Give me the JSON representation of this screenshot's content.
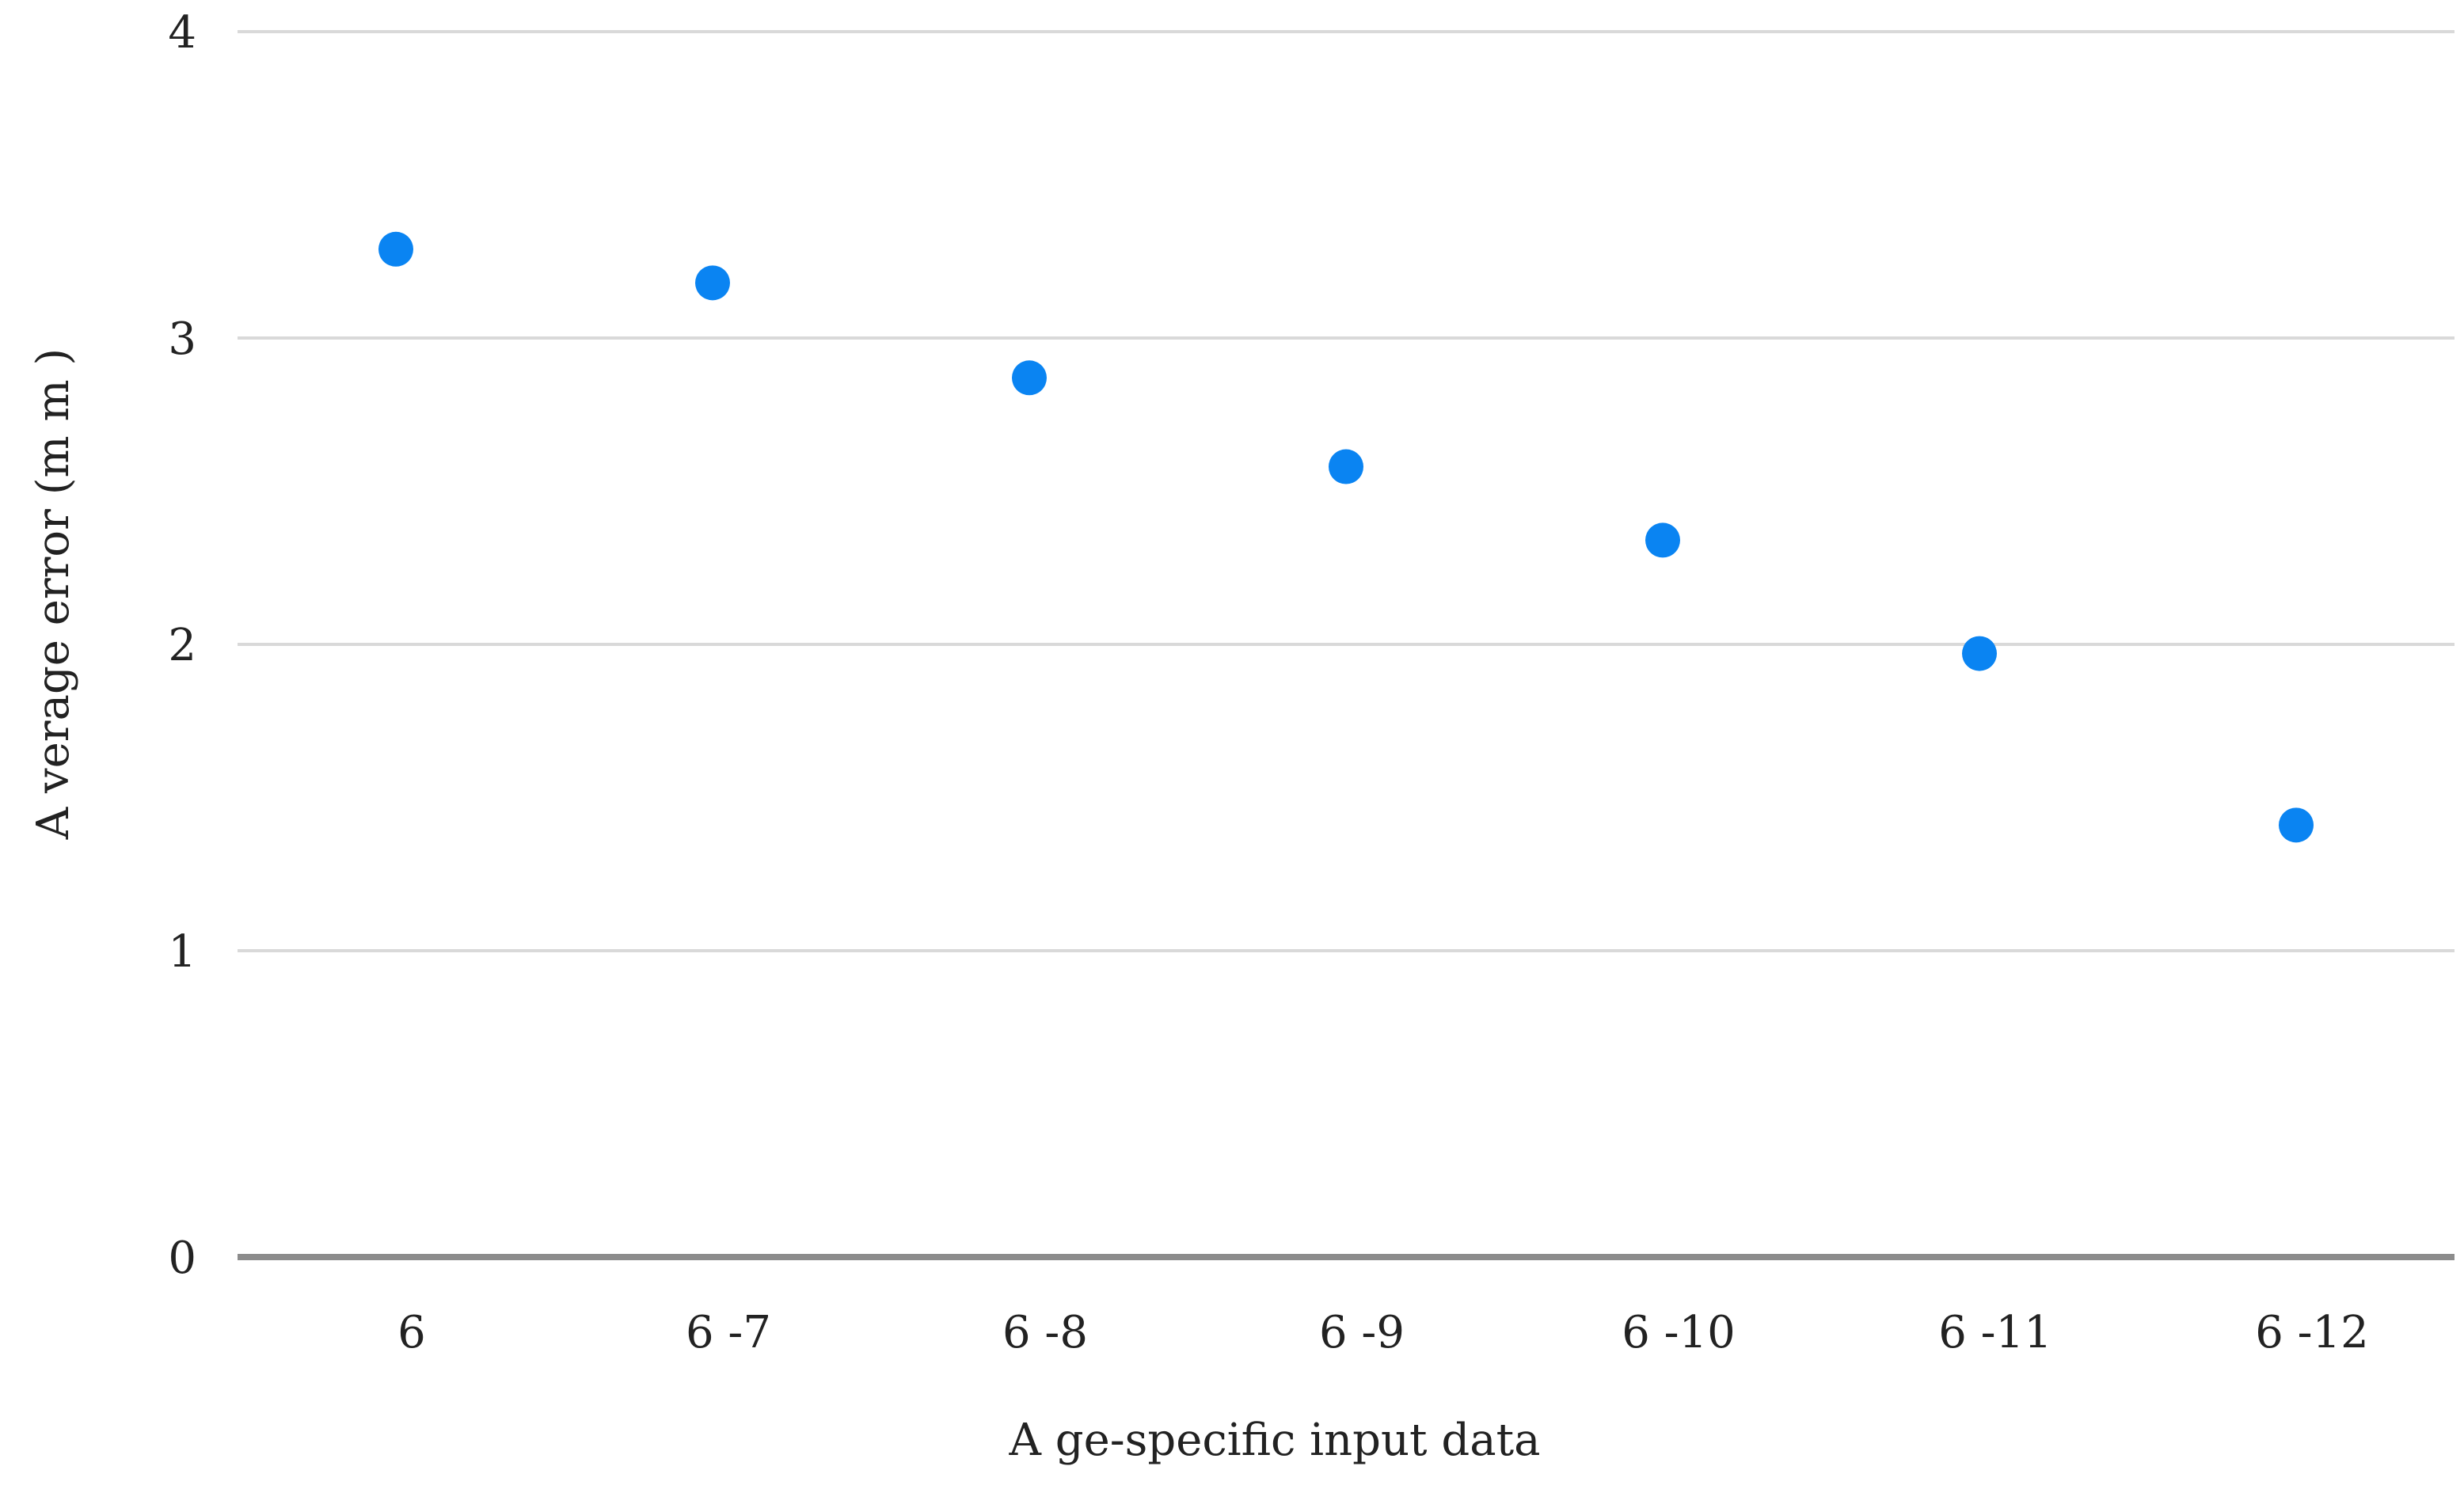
{
  "chart_data": {
    "type": "scatter",
    "title": "",
    "xlabel": "A ge-specific input data",
    "ylabel": "A verage error (m m )",
    "categories": [
      "6",
      "6 -7",
      "6 -8",
      "6 -9",
      "6 -10",
      "6 -11",
      "6 -12"
    ],
    "values": [
      3.29,
      3.18,
      2.87,
      2.58,
      2.34,
      1.97,
      1.41
    ],
    "ylim": [
      0,
      4
    ],
    "yticks": [
      "0",
      "1",
      "2",
      "3",
      "4"
    ],
    "grid": true,
    "legend": "none",
    "colors": {
      "marker": "#0a84f2",
      "gridline": "#d9d9d9",
      "baseline": "#8c8c8c",
      "text": "#222222"
    }
  }
}
